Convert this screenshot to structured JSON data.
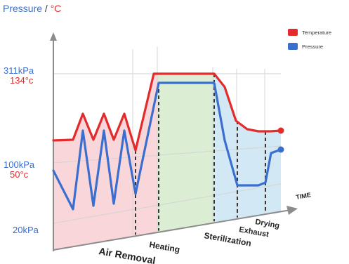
{
  "chart_data": {
    "type": "line",
    "y_axis_title": {
      "pressure": "Pressure",
      "separator": " / ",
      "temperature": "°C"
    },
    "x_axis_title": "TIME",
    "y_ticks": [
      {
        "pressure": "311kPa",
        "temperature": "134°c"
      },
      {
        "pressure": "100kPa",
        "temperature": "50°c"
      },
      {
        "pressure": "20kPa"
      }
    ],
    "phases": [
      "Air Removal",
      "Heating",
      "Sterilization",
      "Exhaust",
      "Drying"
    ],
    "series": [
      {
        "name": "Temperature",
        "color": "#e32b2b"
      },
      {
        "name": "Pressure",
        "color": "#3a6fcf"
      }
    ]
  }
}
